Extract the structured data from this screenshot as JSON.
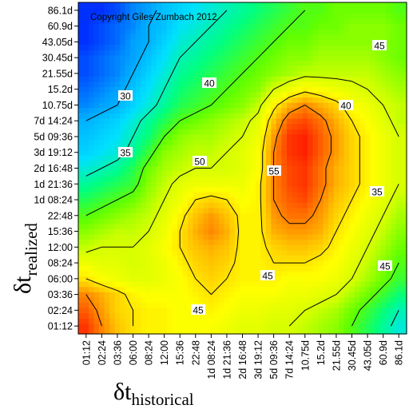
{
  "chart_data": {
    "type": "heatmap",
    "title": "",
    "annotation": "Copyright Giles Zumbach 2012",
    "xlabel": {
      "main": "δt",
      "sub": "historical"
    },
    "ylabel": {
      "main": "δt",
      "sub": "realized"
    },
    "x_ticks": [
      "01:12",
      "02:24",
      "03:36",
      "06:00",
      "08:24",
      "12:00",
      "15:36",
      "22:48",
      "1d 08:24",
      "1d 21:36",
      "2d 16:48",
      "3d 19:12",
      "5d 09:36",
      "7d 14:24",
      "10.75d",
      "15.2d",
      "21.55d",
      "30.45d",
      "43.05d",
      "60.9d",
      "86.1d"
    ],
    "y_ticks": [
      "01:12",
      "02:24",
      "03:36",
      "06:00",
      "08:24",
      "12:00",
      "15:36",
      "22:48",
      "1d 08:24",
      "1d 21:36",
      "2d 16:48",
      "3d 19:12",
      "5d 09:36",
      "7d 14:24",
      "10.75d",
      "15.2d",
      "21.55d",
      "30.45d",
      "43.05d",
      "60.9d",
      "86.1d"
    ],
    "contour_levels": [
      30,
      35,
      40,
      45,
      50,
      55
    ],
    "contour_labels": [
      "30",
      "35",
      "40",
      "45",
      "50",
      "55",
      "40",
      "45",
      "35",
      "45",
      "45",
      "40"
    ],
    "colormap": [
      "#0030ff",
      "#00a0ff",
      "#00e0ff",
      "#00ff80",
      "#60ff00",
      "#d0ff00",
      "#ffff00",
      "#ffc000",
      "#ff7000",
      "#ff2000"
    ],
    "value_range": [
      25,
      60
    ],
    "grid": false,
    "legend": "none",
    "z": [
      [
        59,
        55,
        52,
        50,
        49,
        49,
        48,
        48,
        48,
        47,
        46,
        46,
        45,
        45,
        44,
        43,
        42,
        40,
        38,
        36,
        34
      ],
      [
        57,
        54,
        51,
        50,
        49,
        49,
        48,
        48,
        49,
        48,
        47,
        47,
        46,
        46,
        45,
        44,
        43,
        41,
        39,
        37,
        35
      ],
      [
        55,
        53,
        51,
        49,
        48,
        48,
        48,
        49,
        50,
        49,
        48,
        48,
        48,
        47,
        47,
        46,
        45,
        43,
        41,
        39,
        37
      ],
      [
        50,
        48,
        47,
        46,
        46,
        47,
        48,
        50,
        51,
        50,
        49,
        49,
        49,
        48,
        48,
        48,
        47,
        45,
        43,
        41,
        39
      ],
      [
        47,
        46,
        46,
        45,
        46,
        47,
        49,
        51,
        52,
        51,
        49,
        49,
        50,
        50,
        50,
        49,
        48,
        46,
        44,
        42,
        40
      ],
      [
        44,
        45,
        45,
        45,
        46,
        48,
        50,
        52,
        53,
        52,
        49,
        49,
        51,
        52,
        52,
        51,
        49,
        47,
        45,
        43,
        41
      ],
      [
        42,
        43,
        44,
        44,
        45,
        47,
        50,
        53,
        55,
        53,
        49,
        49,
        53,
        54,
        54,
        53,
        50,
        48,
        46,
        44,
        42
      ],
      [
        40,
        41,
        42,
        43,
        44,
        46,
        49,
        52,
        54,
        52,
        49,
        49,
        54,
        56,
        56,
        54,
        51,
        49,
        47,
        45,
        43
      ],
      [
        38,
        39,
        40,
        41,
        43,
        45,
        47,
        50,
        51,
        50,
        48,
        49,
        55,
        57,
        58,
        55,
        52,
        50,
        48,
        46,
        44
      ],
      [
        36,
        37,
        38,
        39,
        42,
        44,
        46,
        47,
        47,
        47,
        47,
        49,
        55,
        58,
        59,
        56,
        53,
        51,
        49,
        47,
        45
      ],
      [
        34,
        35,
        36,
        38,
        41,
        43,
        44,
        45,
        45,
        45,
        46,
        48,
        55,
        58,
        59,
        56,
        53,
        51,
        49,
        47,
        45
      ],
      [
        32,
        33,
        34,
        36,
        39,
        42,
        43,
        44,
        44,
        45,
        46,
        48,
        55,
        59,
        60,
        57,
        54,
        51,
        49,
        47,
        45
      ],
      [
        31,
        32,
        33,
        35,
        37,
        40,
        42,
        43,
        43,
        44,
        45,
        47,
        54,
        59,
        60,
        57,
        54,
        51,
        49,
        47,
        45
      ],
      [
        30,
        31,
        32,
        34,
        36,
        38,
        40,
        41,
        42,
        43,
        44,
        46,
        52,
        57,
        58,
        56,
        53,
        50,
        48,
        46,
        44
      ],
      [
        28,
        29,
        30,
        32,
        34,
        36,
        38,
        39,
        40,
        41,
        42,
        44,
        49,
        53,
        55,
        53,
        51,
        48,
        47,
        45,
        44
      ],
      [
        27,
        28,
        29,
        31,
        33,
        35,
        37,
        38,
        39,
        40,
        41,
        42,
        45,
        47,
        49,
        48,
        47,
        46,
        45,
        44,
        43
      ],
      [
        26,
        27,
        28,
        30,
        32,
        34,
        36,
        37,
        38,
        39,
        40,
        41,
        42,
        43,
        44,
        44,
        44,
        44,
        44,
        43,
        42
      ],
      [
        26,
        27,
        28,
        29,
        31,
        33,
        35,
        36,
        37,
        38,
        39,
        40,
        41,
        42,
        42,
        43,
        43,
        43,
        43,
        42,
        41
      ],
      [
        25,
        26,
        27,
        29,
        30,
        32,
        34,
        35,
        36,
        37,
        38,
        39,
        40,
        41,
        41,
        42,
        42,
        42,
        42,
        42,
        41
      ],
      [
        25,
        26,
        27,
        28,
        30,
        31,
        33,
        34,
        35,
        36,
        37,
        38,
        39,
        40,
        40,
        41,
        41,
        42,
        42,
        42,
        41
      ],
      [
        25,
        25,
        26,
        28,
        29,
        31,
        32,
        33,
        34,
        35,
        36,
        37,
        38,
        39,
        40,
        40,
        41,
        41,
        41,
        41,
        40
      ]
    ]
  }
}
